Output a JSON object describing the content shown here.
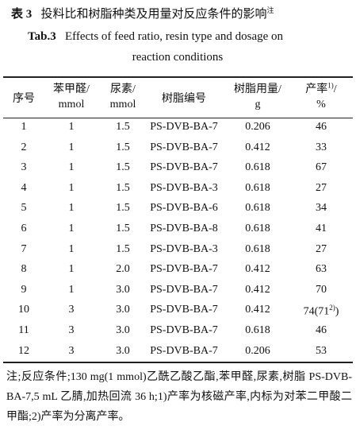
{
  "header": {
    "cn_label": "表 3",
    "cn_title": "投料比和树脂种类及用量对反应条件的影响",
    "cn_sup": "注",
    "en_label": "Tab.3",
    "en_title_1": "Effects of feed ratio, resin type and dosage on",
    "en_title_2": "reaction conditions"
  },
  "table": {
    "columns": [
      {
        "line1": "序号"
      },
      {
        "line1": "苯甲醛/",
        "line2": "mmol"
      },
      {
        "line1": "尿素/",
        "line2": "mmol"
      },
      {
        "line1": "树脂编号"
      },
      {
        "line1": "树脂用量/",
        "line2": "g"
      },
      {
        "line1": "产率",
        "sup": "1)",
        "tail": "/",
        "line2": "%"
      }
    ],
    "rows": [
      [
        "1",
        "1",
        "1.5",
        "PS-DVB-BA-7",
        "0.206",
        "46"
      ],
      [
        "2",
        "1",
        "1.5",
        "PS-DVB-BA-7",
        "0.412",
        "33"
      ],
      [
        "3",
        "1",
        "1.5",
        "PS-DVB-BA-7",
        "0.618",
        "67"
      ],
      [
        "4",
        "1",
        "1.5",
        "PS-DVB-BA-3",
        "0.618",
        "27"
      ],
      [
        "5",
        "1",
        "1.5",
        "PS-DVB-BA-6",
        "0.618",
        "34"
      ],
      [
        "6",
        "1",
        "1.5",
        "PS-DVB-BA-8",
        "0.618",
        "41"
      ],
      [
        "7",
        "1",
        "1.5",
        "PS-DVB-BA-3",
        "0.618",
        "27"
      ],
      [
        "8",
        "1",
        "2.0",
        "PS-DVB-BA-7",
        "0.412",
        "63"
      ],
      [
        "9",
        "1",
        "3.0",
        "PS-DVB-BA-7",
        "0.412",
        "70"
      ],
      [
        "10",
        "3",
        "3.0",
        "PS-DVB-BA-7",
        "0.412",
        {
          "text": "74(71",
          "sup": "2)",
          "tail": ")"
        }
      ],
      [
        "11",
        "3",
        "3.0",
        "PS-DVB-BA-7",
        "0.618",
        "46"
      ],
      [
        "12",
        "3",
        "3.0",
        "PS-DVB-BA-7",
        "0.206",
        "53"
      ]
    ]
  },
  "note": "注;反应条件;130 mg(1 mmol)乙酰乙酸乙酯,苯甲醛,尿素,树脂 PS-DVB-BA-7,5 mL 乙腈,加热回流 36 h;1)产率为核磁产率,内标为对苯二甲酸二甲酯;2)产率为分离产率。"
}
